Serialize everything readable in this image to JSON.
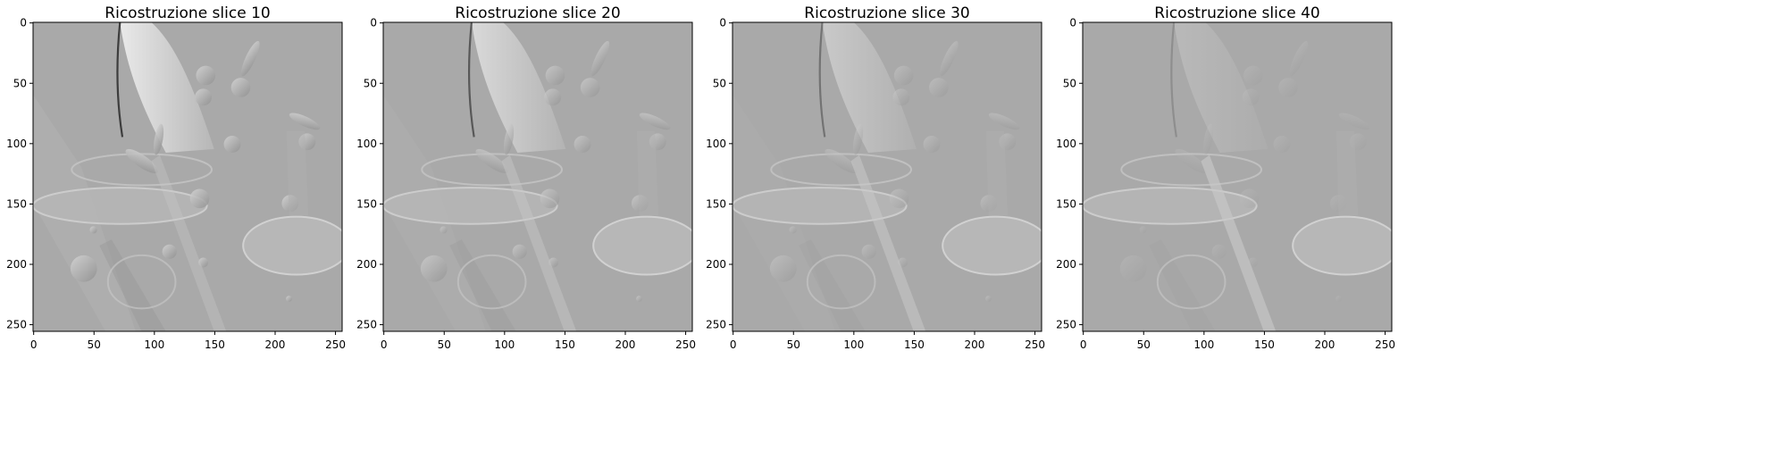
{
  "figure": {
    "panels": [
      {
        "title": "Ricostruzione slice 10",
        "variant": 0
      },
      {
        "title": "Ricostruzione slice 20",
        "variant": 1
      },
      {
        "title": "Ricostruzione slice 30",
        "variant": 2
      },
      {
        "title": "Ricostruzione slice 40",
        "variant": 3
      }
    ],
    "x_ticks": [
      "0",
      "50",
      "100",
      "150",
      "200",
      "250"
    ],
    "y_ticks": [
      "0",
      "50",
      "100",
      "150",
      "200",
      "250"
    ],
    "image_size": 256,
    "colormap": "gray",
    "background_gray": "#a9a9a9",
    "bright_gray": "#dcdcdc",
    "dark_gray": "#2a2a2a"
  }
}
